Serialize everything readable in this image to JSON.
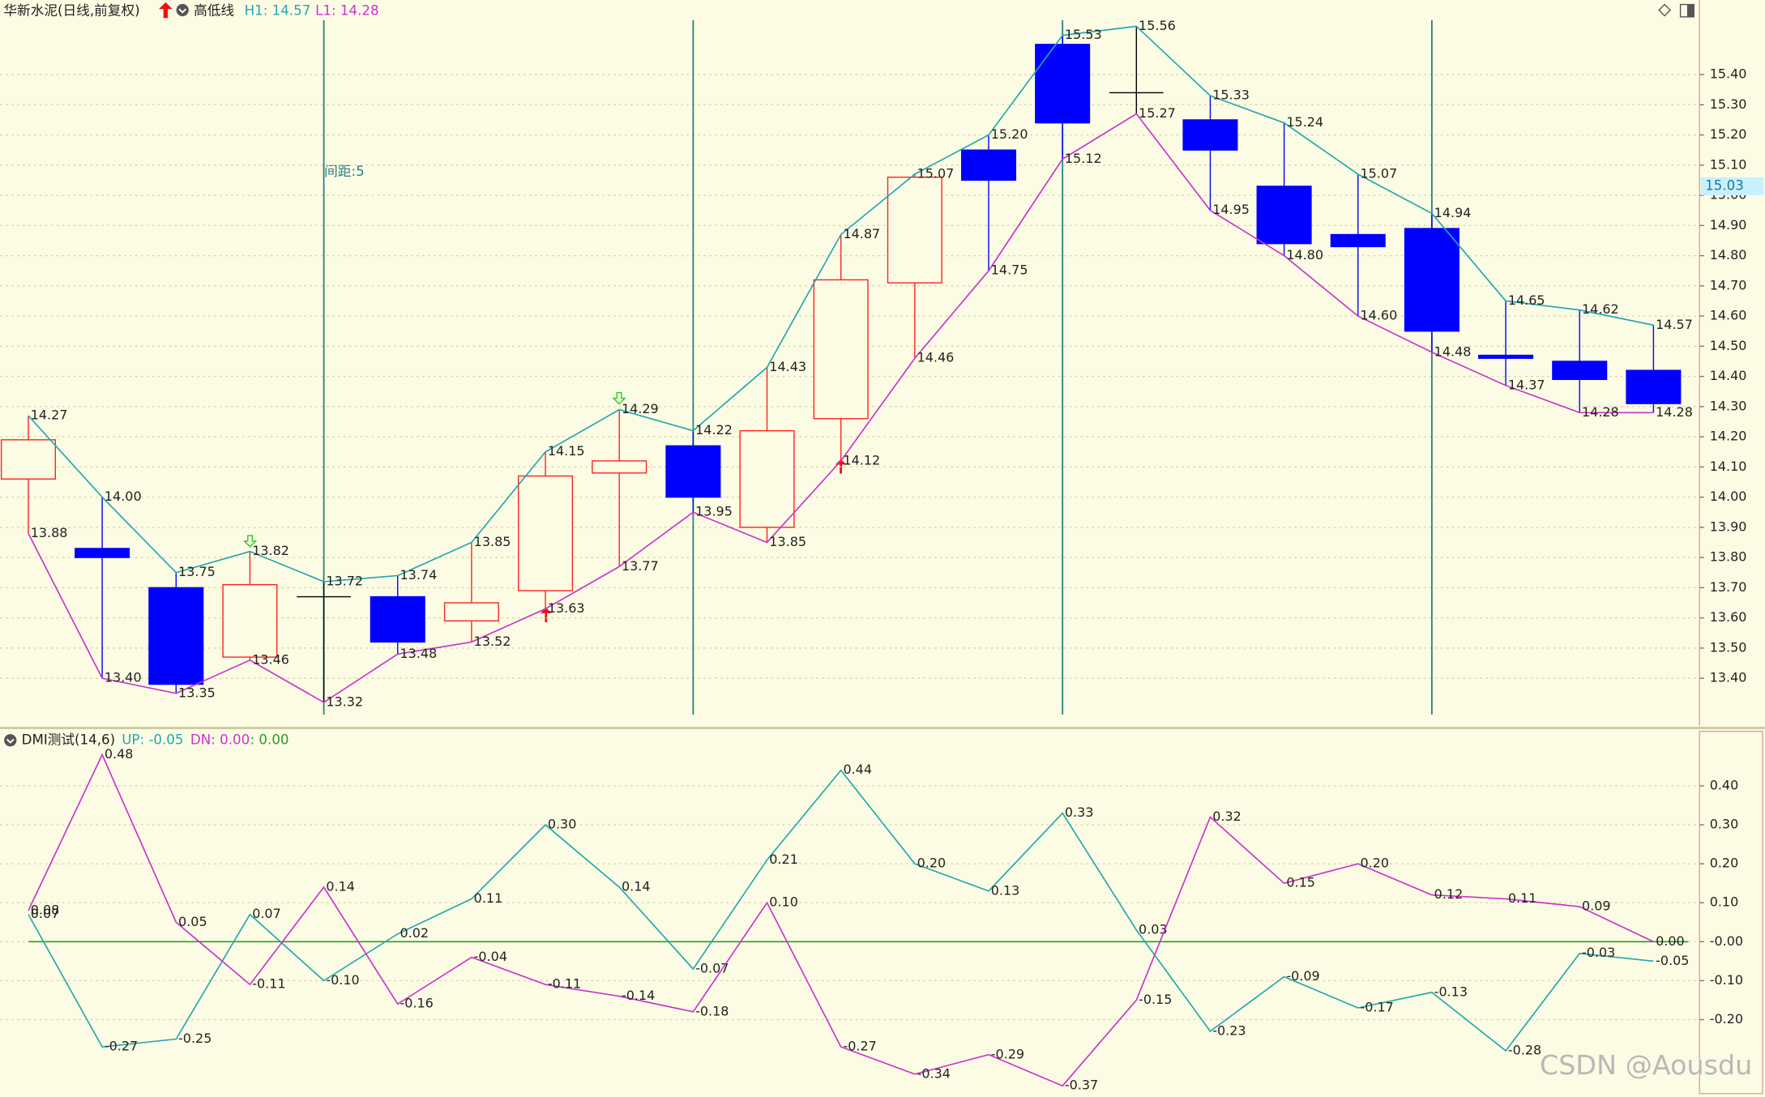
{
  "chart_data": [
    {
      "type": "candlestick",
      "title": "华新水泥(日线,前复权)",
      "indicator": "高低线",
      "legend_texts": [
        "H1: 14.57",
        "L1: 14.28"
      ],
      "annotation": "间距:5",
      "watermark": "CSDN @Aousdu",
      "open": [
        14.06,
        13.83,
        13.7,
        13.47,
        13.67,
        13.67,
        13.59,
        13.69,
        14.08,
        14.17,
        13.9,
        14.26,
        14.71,
        15.15,
        15.5,
        15.34,
        15.25,
        15.03,
        14.87,
        14.89,
        14.47,
        14.45,
        14.42
      ],
      "close": [
        14.19,
        13.8,
        13.38,
        13.71,
        13.67,
        13.52,
        13.65,
        14.07,
        14.12,
        14.0,
        14.22,
        14.72,
        15.06,
        15.05,
        15.24,
        15.34,
        15.15,
        14.84,
        14.83,
        14.55,
        14.46,
        14.39,
        14.31
      ],
      "series": [
        {
          "color": "#22a8b0",
          "values": [
            14.27,
            14.0,
            13.75,
            13.82,
            13.72,
            13.74,
            13.85,
            14.15,
            14.29,
            14.22,
            14.43,
            14.87,
            15.07,
            15.2,
            15.53,
            15.56,
            15.33,
            15.24,
            15.07,
            14.94,
            14.65,
            14.62,
            14.57
          ],
          "value_labels": [
            "14.27",
            "14.00",
            "13.75",
            "13.82",
            "13.72",
            "13.74",
            "13.85",
            "14.15",
            "14.29",
            "14.22",
            "14.43",
            "14.87",
            "15.07",
            "15.20",
            "15.53",
            "15.56",
            "15.33",
            "15.24",
            "15.07",
            "14.94",
            "14.65",
            "14.62",
            "14.57"
          ]
        },
        {
          "color": "#cc33cc",
          "values": [
            13.88,
            13.4,
            13.35,
            13.46,
            13.32,
            13.48,
            13.52,
            13.63,
            13.77,
            13.95,
            13.85,
            14.12,
            14.46,
            14.75,
            15.12,
            15.27,
            14.95,
            14.8,
            14.6,
            14.48,
            14.37,
            14.28,
            14.28
          ],
          "value_labels": [
            "13.88",
            "13.40",
            "13.35",
            "13.46",
            "13.32",
            "13.48",
            "13.52",
            "13.63",
            "13.77",
            "13.95",
            "13.85",
            "14.12",
            "14.46",
            "14.75",
            "15.12",
            "15.27",
            "14.95",
            "14.80",
            "14.60",
            "14.48",
            "14.37",
            "14.28",
            "14.28"
          ]
        }
      ],
      "up_color": "#ff2020",
      "down_color": "#0000ff",
      "flat_color": "#000000",
      "price_marker": 15.03,
      "ylim": [
        13.28,
        15.58
      ],
      "yticks": [
        {
          "value": 13.4,
          "label": "13.40"
        },
        {
          "value": 13.5,
          "label": "13.50"
        },
        {
          "value": 13.6,
          "label": "13.60"
        },
        {
          "value": 13.7,
          "label": "13.70"
        },
        {
          "value": 13.8,
          "label": "13.80"
        },
        {
          "value": 13.9,
          "label": "13.90"
        },
        {
          "value": 14.0,
          "label": "14.00"
        },
        {
          "value": 14.1,
          "label": "14.10"
        },
        {
          "value": 14.2,
          "label": "14.20"
        },
        {
          "value": 14.3,
          "label": "14.30"
        },
        {
          "value": 14.4,
          "label": "14.40"
        },
        {
          "value": 14.5,
          "label": "14.50"
        },
        {
          "value": 14.6,
          "label": "14.60"
        },
        {
          "value": 14.7,
          "label": "14.70"
        },
        {
          "value": 14.8,
          "label": "14.80"
        },
        {
          "value": 14.9,
          "label": "14.90"
        },
        {
          "value": 15.0,
          "label": "15.00"
        },
        {
          "value": 15.1,
          "label": "15.10"
        },
        {
          "value": 15.2,
          "label": "15.20"
        },
        {
          "value": 15.3,
          "label": "15.30"
        },
        {
          "value": 15.4,
          "label": "15.40"
        }
      ],
      "grid": true
    },
    {
      "type": "line",
      "title": "DMI测试(14,6)",
      "legend_texts": [
        "UP: -0.05",
        "DN: 0.00",
        ": 0.00"
      ],
      "series": [
        {
          "color": "#22a8b0",
          "values": [
            0.07,
            -0.27,
            -0.25,
            0.07,
            -0.1,
            0.02,
            0.11,
            0.3,
            0.14,
            -0.07,
            0.21,
            0.44,
            0.2,
            0.13,
            0.33,
            0.03,
            -0.23,
            -0.09,
            -0.17,
            -0.13,
            -0.28,
            -0.03,
            -0.05
          ],
          "value_labels": [
            "0.07",
            "-0.27",
            "-0.25",
            "0.07",
            "-0.10",
            "0.02",
            "0.11",
            "0.30",
            "0.14",
            "-0.07",
            "0.21",
            "0.44",
            "0.20",
            "0.13",
            "0.33",
            "0.03",
            "-0.23",
            "-0.09",
            "-0.17",
            "-0.13",
            "-0.28",
            "-0.03",
            "-0.05"
          ]
        },
        {
          "color": "#cc33cc",
          "values": [
            0.08,
            0.48,
            0.05,
            -0.11,
            0.14,
            -0.16,
            -0.04,
            -0.11,
            -0.14,
            -0.18,
            0.1,
            -0.27,
            -0.34,
            -0.29,
            -0.37,
            -0.15,
            0.32,
            0.15,
            0.2,
            0.12,
            0.11,
            0.09,
            0.0
          ],
          "value_labels": [
            "0.08",
            "0.48",
            "0.05",
            "-0.11",
            "0.14",
            "-0.16",
            "-0.04",
            "-0.11",
            "-0.14",
            "-0.18",
            "0.10",
            "-0.27",
            "-0.34",
            "-0.29",
            "-0.37",
            "-0.15",
            "0.32",
            "0.15",
            "0.20",
            "0.12",
            "0.11",
            "0.09",
            "0.00"
          ]
        }
      ],
      "zero_line_color": "#2a9a2a",
      "ylim": [
        -0.39,
        0.54
      ],
      "yticks": [
        {
          "value": -0.2,
          "label": "-0.20"
        },
        {
          "value": -0.1,
          "label": "-0.10"
        },
        {
          "value": 0,
          "label": "-0.00"
        },
        {
          "value": 0.1,
          "label": "0.10"
        },
        {
          "value": 0.2,
          "label": "0.20"
        },
        {
          "value": 0.3,
          "label": "0.30"
        },
        {
          "value": 0.4,
          "label": "0.40"
        }
      ],
      "grid": true
    }
  ]
}
